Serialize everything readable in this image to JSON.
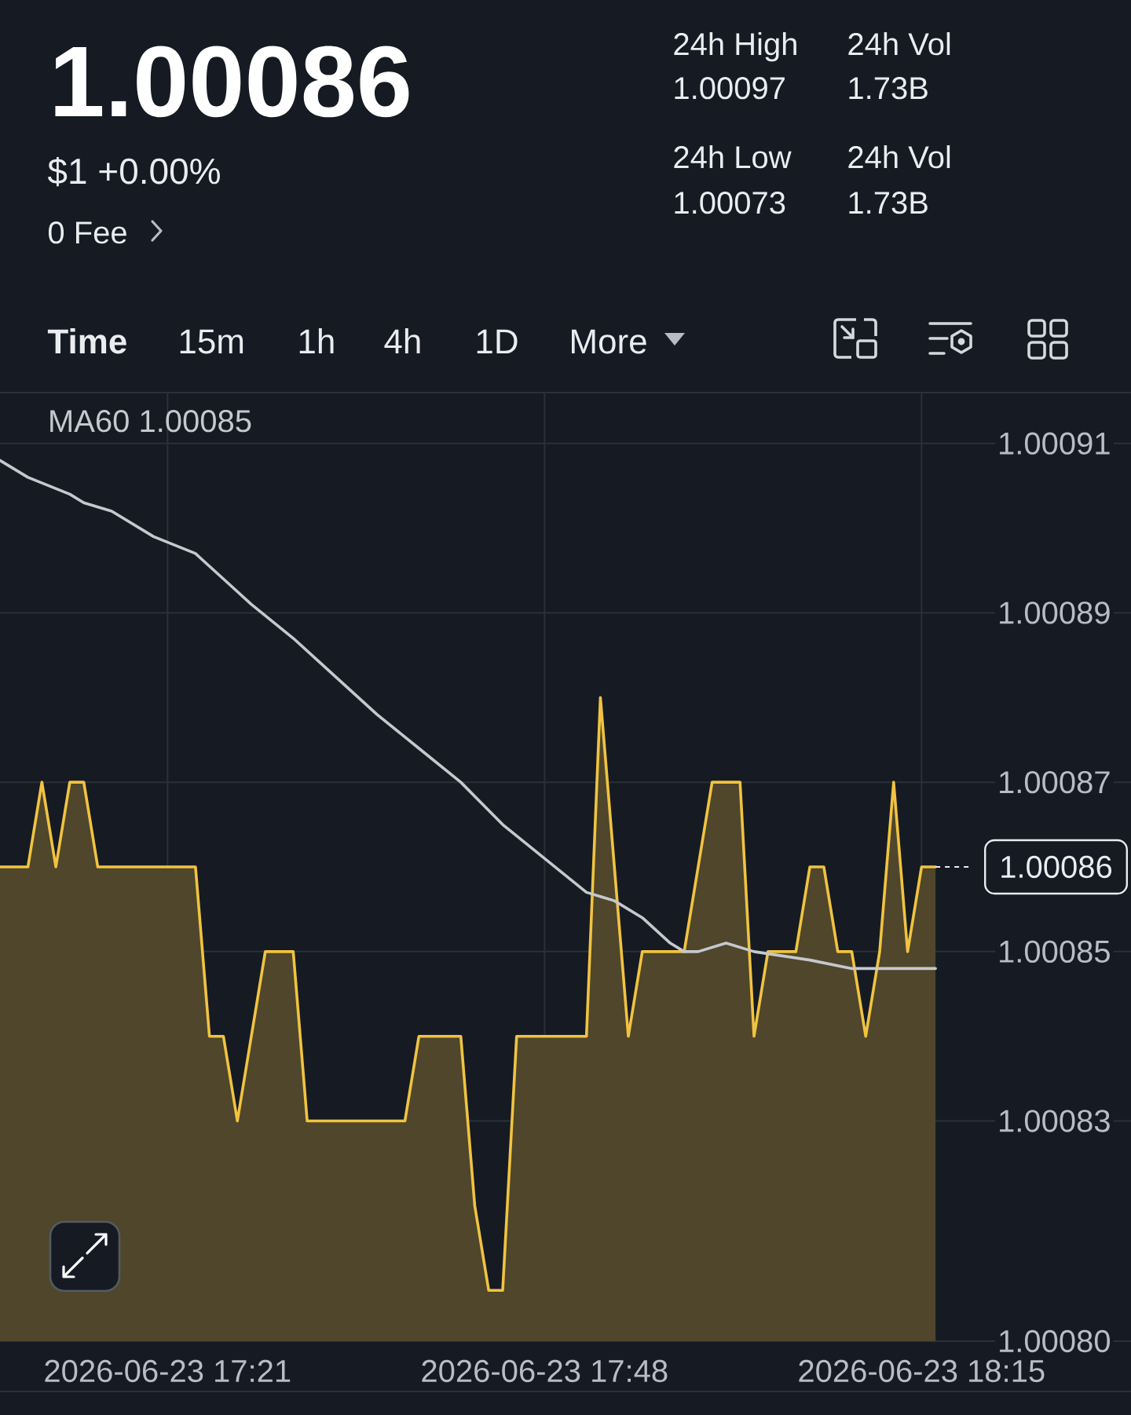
{
  "chart_data": {
    "type": "area",
    "title": "1.00086",
    "subtitle": "$1 +0.00%",
    "annotations": [
      "0 Fee",
      "24h High",
      "1.00097",
      "24h Vol",
      "1.73B",
      "24h Low",
      "1.00073",
      "24h Vol",
      "1.73B",
      "Time",
      "15m",
      "1h",
      "4h",
      "1D",
      "More"
    ],
    "x": [
      "2026-06-23T17:09",
      "2026-06-23T17:10",
      "2026-06-23T17:11",
      "2026-06-23T17:12",
      "2026-06-23T17:13",
      "2026-06-23T17:14",
      "2026-06-23T17:15",
      "2026-06-23T17:16",
      "2026-06-23T17:17",
      "2026-06-23T17:18",
      "2026-06-23T17:19",
      "2026-06-23T17:20",
      "2026-06-23T17:21",
      "2026-06-23T17:22",
      "2026-06-23T17:23",
      "2026-06-23T17:24",
      "2026-06-23T17:25",
      "2026-06-23T17:26",
      "2026-06-23T17:27",
      "2026-06-23T17:28",
      "2026-06-23T17:29",
      "2026-06-23T17:30",
      "2026-06-23T17:31",
      "2026-06-23T17:32",
      "2026-06-23T17:33",
      "2026-06-23T17:34",
      "2026-06-23T17:35",
      "2026-06-23T17:36",
      "2026-06-23T17:37",
      "2026-06-23T17:38",
      "2026-06-23T17:39",
      "2026-06-23T17:40",
      "2026-06-23T17:41",
      "2026-06-23T17:42",
      "2026-06-23T17:43",
      "2026-06-23T17:44",
      "2026-06-23T17:45",
      "2026-06-23T17:46",
      "2026-06-23T17:47",
      "2026-06-23T17:48",
      "2026-06-23T17:49",
      "2026-06-23T17:50",
      "2026-06-23T17:51",
      "2026-06-23T17:52",
      "2026-06-23T17:53",
      "2026-06-23T17:54",
      "2026-06-23T17:55",
      "2026-06-23T17:56",
      "2026-06-23T17:57",
      "2026-06-23T17:58",
      "2026-06-23T17:59",
      "2026-06-23T18:00",
      "2026-06-23T18:01",
      "2026-06-23T18:02",
      "2026-06-23T18:03",
      "2026-06-23T18:04",
      "2026-06-23T18:05",
      "2026-06-23T18:06",
      "2026-06-23T18:07",
      "2026-06-23T18:08",
      "2026-06-23T18:09",
      "2026-06-23T18:10",
      "2026-06-23T18:11",
      "2026-06-23T18:12",
      "2026-06-23T18:13",
      "2026-06-23T18:14",
      "2026-06-23T18:15",
      "2026-06-23T18:16"
    ],
    "series": [
      {
        "color": "#f0c341",
        "values": [
          1.00086,
          1.00086,
          1.00086,
          1.00087,
          1.00086,
          1.00087,
          1.00087,
          1.00086,
          1.00086,
          1.00086,
          1.00086,
          1.00086,
          1.00086,
          1.00086,
          1.00086,
          1.00084,
          1.00084,
          1.00083,
          1.00084,
          1.00085,
          1.00085,
          1.00085,
          1.00083,
          1.00083,
          1.00083,
          1.00083,
          1.00083,
          1.00083,
          1.00083,
          1.00083,
          1.00084,
          1.00084,
          1.00084,
          1.00084,
          1.00082,
          1.00081,
          1.00081,
          1.00084,
          1.00084,
          1.00084,
          1.00084,
          1.00084,
          1.00084,
          1.00088,
          1.00086,
          1.00084,
          1.00085,
          1.00085,
          1.00085,
          1.00085,
          1.00086,
          1.00087,
          1.00087,
          1.00087,
          1.00084,
          1.00085,
          1.00085,
          1.00085,
          1.00086,
          1.00086,
          1.00085,
          1.00085,
          1.00084,
          1.00085,
          1.00087,
          1.00085,
          1.00086,
          1.00086
        ]
      },
      {
        "type": "line",
        "name": "MA60 1.00085",
        "color": "#c5c8cd",
        "x": [
          "2026-06-23T17:09",
          "2026-06-23T17:11",
          "2026-06-23T17:14",
          "2026-06-23T17:15",
          "2026-06-23T17:17",
          "2026-06-23T17:20",
          "2026-06-23T17:23",
          "2026-06-23T17:25",
          "2026-06-23T17:27",
          "2026-06-23T17:30",
          "2026-06-23T17:32",
          "2026-06-23T17:36",
          "2026-06-23T17:39",
          "2026-06-23T17:42",
          "2026-06-23T17:45",
          "2026-06-23T17:48",
          "2026-06-23T17:51",
          "2026-06-23T17:53",
          "2026-06-23T17:55",
          "2026-06-23T17:57",
          "2026-06-23T17:58",
          "2026-06-23T17:59",
          "2026-06-23T18:01",
          "2026-06-23T18:03",
          "2026-06-23T18:07",
          "2026-06-23T18:10",
          "2026-06-23T18:12",
          "2026-06-23T18:15",
          "2026-06-23T18:16"
        ],
        "values": [
          1.000908,
          1.000906,
          1.000904,
          1.000903,
          1.000902,
          1.000899,
          1.000897,
          1.000894,
          1.000891,
          1.000887,
          1.000884,
          1.000878,
          1.000874,
          1.00087,
          1.000865,
          1.000861,
          1.000857,
          1.000856,
          1.000854,
          1.000851,
          1.00085,
          1.00085,
          1.000851,
          1.00085,
          1.000849,
          1.000848,
          1.000848,
          1.000848,
          1.000848
        ]
      }
    ],
    "xlim": [
      "2026-06-23T17:09",
      "2026-06-23T18:30"
    ],
    "xticks": [
      {
        "value": "2026-06-23T17:21",
        "label": "2026-06-23 17:21"
      },
      {
        "value": "2026-06-23T17:48",
        "label": "2026-06-23 17:48"
      },
      {
        "value": "2026-06-23T18:15",
        "label": "2026-06-23 18:15"
      }
    ],
    "ylim": [
      1.000804,
      1.000916
    ],
    "yticks": [
      1.00091,
      1.00089,
      1.00087,
      1.00085,
      1.00083,
      {
        "value": 1.000804,
        "label": "1.00080"
      }
    ],
    "ref_lines": [
      {
        "axis": "y",
        "value": 1.00086,
        "label": "1.00086",
        "line_style": "dashed",
        "color": "#eaecef"
      }
    ],
    "grid": true,
    "legend": "top left",
    "line_style": "solid"
  }
}
